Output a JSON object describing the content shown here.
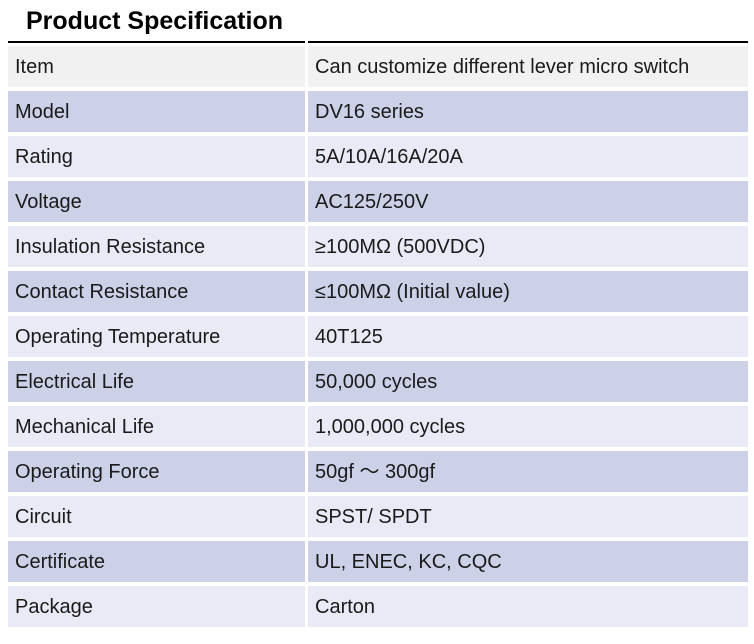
{
  "page": {
    "title": "Product Specification"
  },
  "table": {
    "colors": {
      "header_row_bg": "#f1f1f1",
      "row_dark_bg": "#ccd1e8",
      "row_light_bg": "#e9eaf5",
      "top_border": "#000000",
      "text": "#1a1a1a"
    },
    "rows": [
      {
        "key": "Item",
        "value": "Can customize different lever micro switch"
      },
      {
        "key": "Model",
        "value": "DV16 series"
      },
      {
        "key": "Rating",
        "value": "5A/10A/16A/20A"
      },
      {
        "key": "Voltage",
        "value": "AC125/250V"
      },
      {
        "key": "Insulation Resistance",
        "value": "≥100MΩ (500VDC)"
      },
      {
        "key": "Contact Resistance",
        "value": "≤100MΩ (Initial value)"
      },
      {
        "key": "Operating Temperature",
        "value": "40T125"
      },
      {
        "key": "Electrical Life",
        "value": "50,000 cycles"
      },
      {
        "key": "Mechanical Life",
        "value": "1,000,000 cycles"
      },
      {
        "key": "Operating Force",
        "value": "50gf ～ 300gf"
      },
      {
        "key": "Circuit",
        "value": "SPST/ SPDT"
      },
      {
        "key": "Certificate",
        "value": "UL, ENEC, KC, CQC"
      },
      {
        "key": "Package",
        "value": "Carton"
      }
    ]
  }
}
